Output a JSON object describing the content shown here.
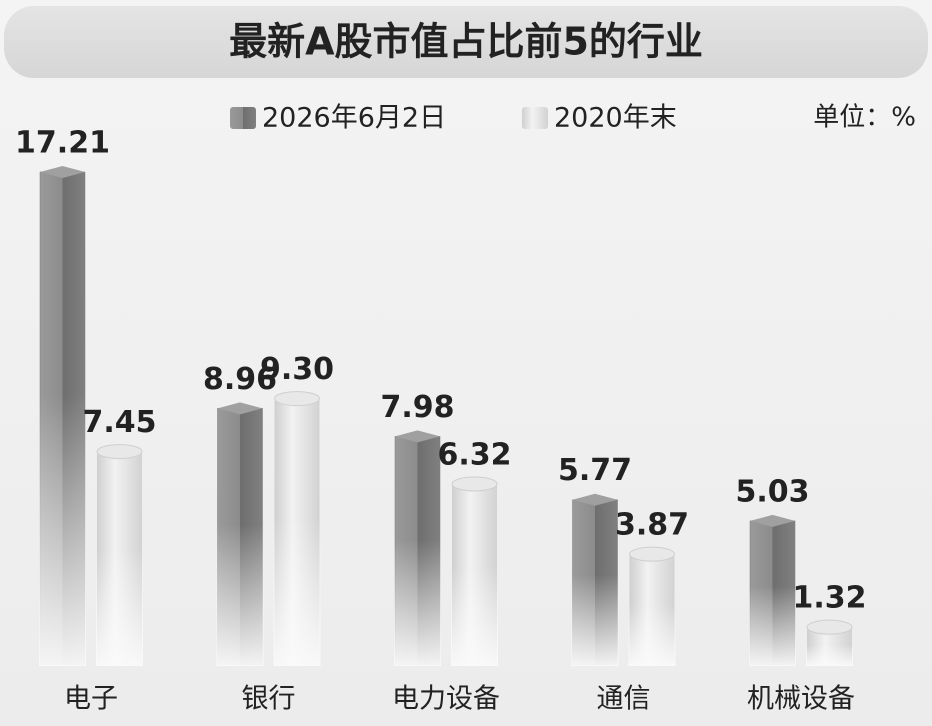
{
  "chart_data": {
    "type": "bar",
    "title": "最新A股市值占比前5的行业",
    "unit_label": "单位：%",
    "categories": [
      "电子",
      "银行",
      "电力设备",
      "通信",
      "机械设备"
    ],
    "series": [
      {
        "name": "2026年6月2日",
        "color": "#7a7a7a",
        "values": [
          17.21,
          8.96,
          7.98,
          5.77,
          5.03
        ],
        "value_labels": [
          "17.21",
          "8.96",
          "7.98",
          "5.77",
          "5.03"
        ]
      },
      {
        "name": "2020年末",
        "color": "#dcdcdc",
        "values": [
          7.45,
          9.3,
          6.32,
          3.87,
          1.32
        ],
        "value_labels": [
          "7.45",
          "9.30",
          "6.32",
          "3.87",
          "1.32"
        ]
      }
    ]
  }
}
